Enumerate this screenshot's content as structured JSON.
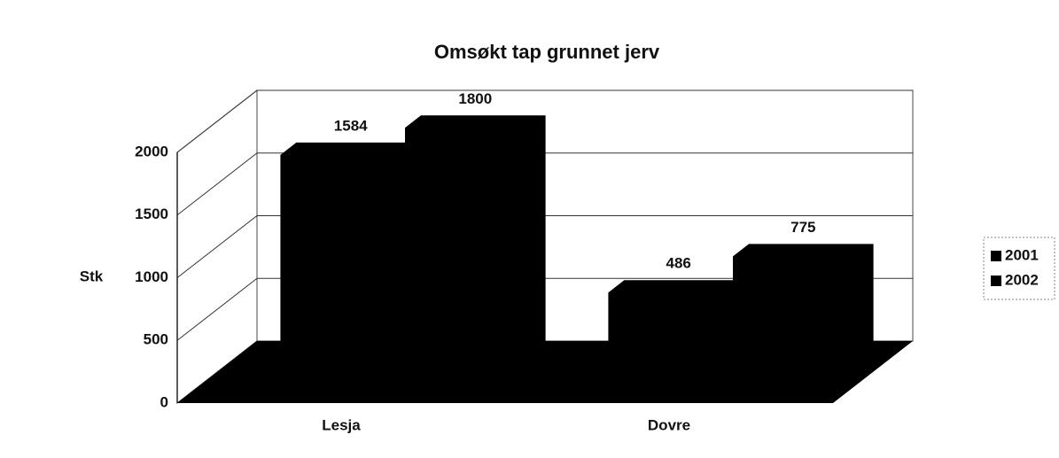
{
  "chart_data": {
    "type": "bar3d",
    "title": "Omsøkt tap grunnet jerv",
    "y_label": "Stk",
    "categories": [
      "Lesja",
      "Dovre"
    ],
    "series": [
      {
        "name": "2001",
        "color": "#000000",
        "values": [
          1584,
          486
        ]
      },
      {
        "name": "2002",
        "color": "#000000",
        "values": [
          1800,
          775
        ]
      }
    ],
    "ylim": [
      0,
      2000
    ],
    "yticks": [
      0,
      500,
      1000,
      1500,
      2000
    ],
    "grid": true,
    "legend": "right"
  }
}
